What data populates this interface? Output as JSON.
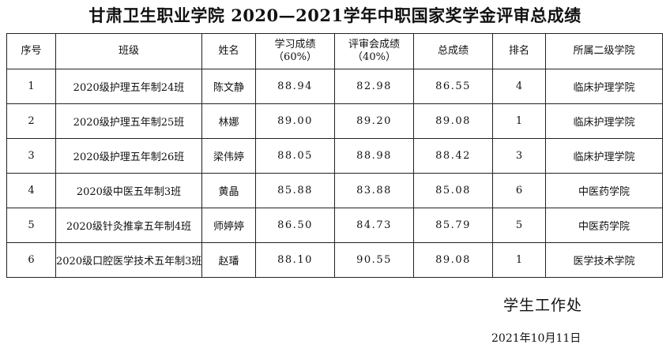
{
  "header": {
    "title": "甘肃卫生职业学院  2020—2021学年中职国家奖学金评审总成绩"
  },
  "table": {
    "columns": [
      "序号",
      "班级",
      "姓名",
      "学习成绩\n（60%）",
      "评审会成绩\n（40%）",
      "总成绩",
      "排名",
      "所属二级学院"
    ],
    "rows": [
      [
        "1",
        "2020级护理五年制24班",
        "陈文静",
        "88.94",
        "82.98",
        "86.55",
        "4",
        "临床护理学院"
      ],
      [
        "2",
        "2020级护理五年制25班",
        "林娜",
        "89.00",
        "89.20",
        "89.08",
        "1",
        "临床护理学院"
      ],
      [
        "3",
        "2020级护理五年制26班",
        "梁伟婷",
        "88.05",
        "88.98",
        "88.42",
        "3",
        "临床护理学院"
      ],
      [
        "4",
        "2020级中医五年制3班",
        "黄晶",
        "85.88",
        "83.88",
        "85.08",
        "6",
        "中医药学院"
      ],
      [
        "5",
        "2020级针灸推拿五年制4班",
        "师婷婷",
        "86.50",
        "84.73",
        "85.79",
        "5",
        "中医药学院"
      ],
      [
        "6",
        "2020级口腔医学技术五年制3班",
        "赵璠",
        "88.10",
        "90.55",
        "89.08",
        "1",
        "医学技术学院"
      ]
    ]
  },
  "footer": {
    "office": "学生工作处",
    "date": "2021年10月11日"
  }
}
